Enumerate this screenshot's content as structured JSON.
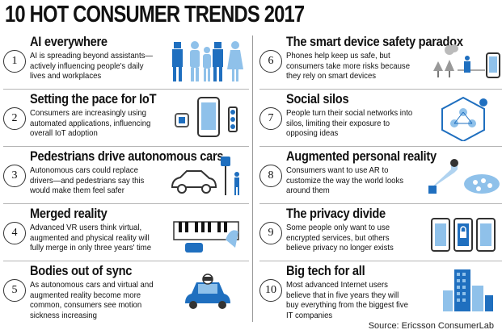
{
  "title": "10 HOT CONSUMER TRENDS 2017",
  "source": "Source: Ericsson ConsumerLab",
  "colors": {
    "accent": "#1f6fbf",
    "light": "#8fc1ea",
    "dark": "#0d3d6e"
  },
  "trends": [
    {
      "num": "1",
      "title": "AI everywhere",
      "desc": "AI is spreading beyond assistants—actively influencing people's daily lives and workplaces",
      "icon": "people-robots-icon"
    },
    {
      "num": "2",
      "title": "Setting the pace for IoT",
      "desc": "Consumers are increasingly using automated applications, influencing overall IoT adoption",
      "icon": "devices-icon"
    },
    {
      "num": "3",
      "title": "Pedestrians drive autonomous cars",
      "desc": "Autonomous cars could replace drivers—and pedestrians say this would make them feel safer",
      "icon": "car-pedestrian-icon"
    },
    {
      "num": "4",
      "title": "Merged reality",
      "desc": "Advanced VR users think virtual, augmented and physical reality will fully merge in only three years' time",
      "icon": "vr-keyboard-icon"
    },
    {
      "num": "5",
      "title": "Bodies out of sync",
      "desc": "As autonomous cars and virtual and augmented reality become more common, consumers see motion sickness increasing",
      "icon": "car-sick-icon"
    },
    {
      "num": "6",
      "title": "The smart device safety paradox",
      "desc": "Phones help keep us safe, but consumers take more risks because they rely on smart devices",
      "icon": "phone-safety-icon"
    },
    {
      "num": "7",
      "title": "Social silos",
      "desc": "People turn their social networks into silos, limiting their exposure to opposing ideas",
      "icon": "silo-network-icon"
    },
    {
      "num": "8",
      "title": "Augmented personal reality",
      "desc": "Consumers want to use AR to customize the way the world looks around them",
      "icon": "ar-glasses-icon"
    },
    {
      "num": "9",
      "title": "The privacy divide",
      "desc": "Some people only want to use encrypted services, but others believe privacy no longer exists",
      "icon": "privacy-phones-icon"
    },
    {
      "num": "10",
      "title": "Big tech for all",
      "desc": "Most advanced Internet users believe that in five years they will buy everything from the biggest five IT companies",
      "icon": "skyscraper-icon"
    }
  ]
}
